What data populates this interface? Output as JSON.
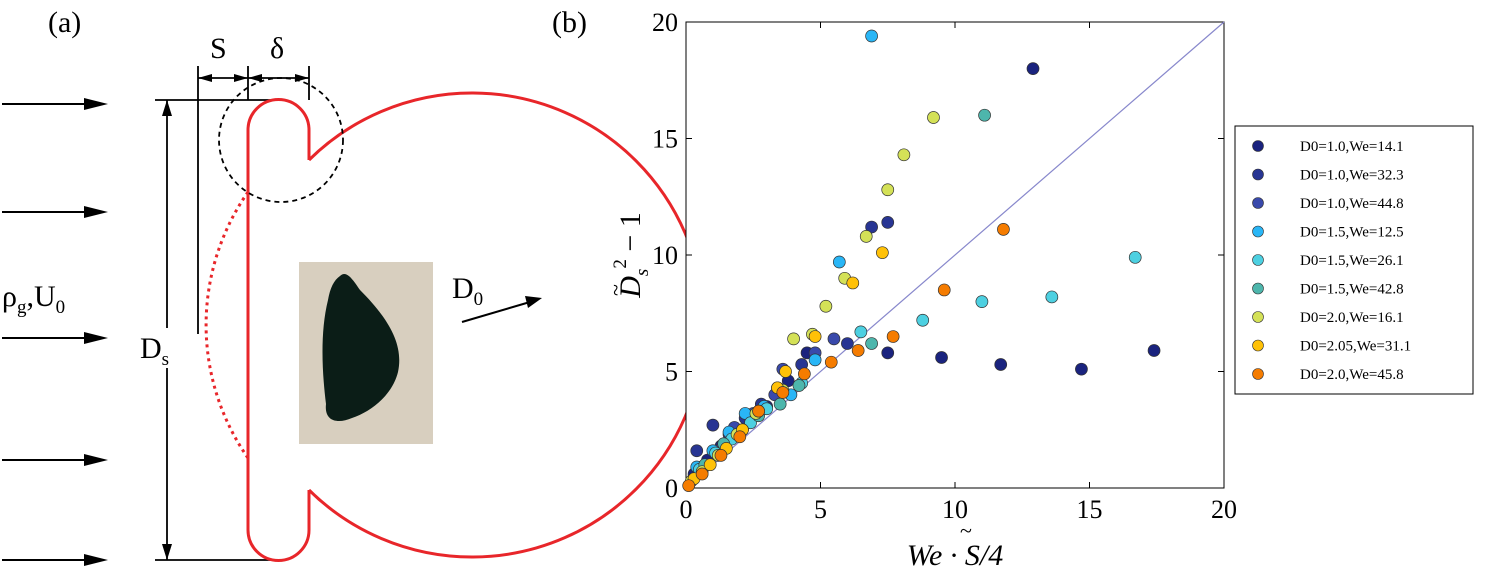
{
  "panel_a": {
    "label": "(a)",
    "s_label": "S",
    "delta_label": "δ",
    "gas_label": "ρ",
    "gas_sub": "g",
    "gas_mid": ",U",
    "gas_sub2": "0",
    "ds_label": "D",
    "ds_sub": "s",
    "d0_label": "D",
    "d0_sub": "0",
    "colors": {
      "drop": "#e8262a",
      "line": "#000000",
      "photo_bg": "#d8cfbf",
      "photo_drop": "#0b1d17"
    }
  },
  "panel_b": {
    "label": "(b)"
  },
  "chart_data": {
    "type": "scatter",
    "xlabel": "We · S̃/4",
    "ylabel": "D̃s² − 1",
    "xlim": [
      0,
      20
    ],
    "ylim": [
      0,
      20
    ],
    "xticks": [
      "0",
      "5",
      "10",
      "15",
      "20"
    ],
    "yticks": [
      "0",
      "5",
      "10",
      "15",
      "20"
    ],
    "reference_line": {
      "from": [
        0,
        0
      ],
      "to": [
        20,
        20
      ],
      "color": "#8888cc"
    },
    "legend_position": "right",
    "series": [
      {
        "name": "D0=1.0,We=14.1",
        "color": "#1a237e",
        "points": [
          [
            0.3,
            0.6
          ],
          [
            0.8,
            1.2
          ],
          [
            1.3,
            1.8
          ],
          [
            1.8,
            2.4
          ],
          [
            2.3,
            3.0
          ],
          [
            3.0,
            3.5
          ],
          [
            3.8,
            4.6
          ],
          [
            4.5,
            5.8
          ],
          [
            7.5,
            5.8
          ],
          [
            9.5,
            5.6
          ],
          [
            11.7,
            5.3
          ],
          [
            14.7,
            5.1
          ],
          [
            17.4,
            5.9
          ],
          [
            12.9,
            18.0
          ]
        ]
      },
      {
        "name": "D0=1.0,We=32.3",
        "color": "#283593",
        "points": [
          [
            0.4,
            1.6
          ],
          [
            1.0,
            2.7
          ],
          [
            1.6,
            2.3
          ],
          [
            2.2,
            3.0
          ],
          [
            2.8,
            3.6
          ],
          [
            3.4,
            4.3
          ],
          [
            4.3,
            5.3
          ],
          [
            6.0,
            6.2
          ],
          [
            7.5,
            11.4
          ],
          [
            6.9,
            11.2
          ]
        ]
      },
      {
        "name": "D0=1.0,We=44.8",
        "color": "#3949ab",
        "points": [
          [
            0.6,
            0.9
          ],
          [
            1.2,
            1.6
          ],
          [
            1.8,
            2.6
          ],
          [
            2.5,
            3.2
          ],
          [
            3.3,
            4.0
          ],
          [
            3.6,
            5.1
          ],
          [
            4.8,
            5.8
          ],
          [
            5.5,
            6.4
          ]
        ]
      },
      {
        "name": "D0=1.5,We=12.5",
        "color": "#29b6f6",
        "points": [
          [
            0.4,
            0.9
          ],
          [
            1.0,
            1.6
          ],
          [
            1.6,
            2.4
          ],
          [
            2.2,
            3.2
          ],
          [
            2.9,
            3.5
          ],
          [
            3.9,
            4.0
          ],
          [
            4.8,
            5.5
          ],
          [
            5.7,
            9.7
          ],
          [
            6.9,
            19.4
          ]
        ]
      },
      {
        "name": "D0=1.5,We=26.1",
        "color": "#4dd0e1",
        "points": [
          [
            0.5,
            0.8
          ],
          [
            1.1,
            1.5
          ],
          [
            1.7,
            2.1
          ],
          [
            2.4,
            2.8
          ],
          [
            3.0,
            3.4
          ],
          [
            4.3,
            4.5
          ],
          [
            6.5,
            6.7
          ],
          [
            8.8,
            7.2
          ],
          [
            11.0,
            8.0
          ],
          [
            13.6,
            8.2
          ],
          [
            16.7,
            9.9
          ]
        ]
      },
      {
        "name": "D0=1.5,We=42.8",
        "color": "#4db6ac",
        "points": [
          [
            0.7,
            1.0
          ],
          [
            1.4,
            1.9
          ],
          [
            2.1,
            2.5
          ],
          [
            2.7,
            3.1
          ],
          [
            3.5,
            3.6
          ],
          [
            4.2,
            4.4
          ],
          [
            6.9,
            6.2
          ],
          [
            11.1,
            16.0
          ]
        ]
      },
      {
        "name": "D0=2.0,We=16.1",
        "color": "#d4e157",
        "points": [
          [
            0.2,
            0.3
          ],
          [
            0.6,
            0.7
          ],
          [
            1.2,
            1.4
          ],
          [
            1.9,
            2.3
          ],
          [
            2.6,
            3.2
          ],
          [
            3.6,
            4.2
          ],
          [
            4.0,
            6.4
          ],
          [
            4.7,
            6.6
          ],
          [
            5.2,
            7.8
          ],
          [
            5.9,
            9.0
          ],
          [
            6.7,
            10.8
          ],
          [
            7.5,
            12.8
          ],
          [
            8.1,
            14.3
          ],
          [
            9.2,
            15.9
          ]
        ]
      },
      {
        "name": "D0=2.05,We=31.1",
        "color": "#ffc107",
        "points": [
          [
            0.3,
            0.4
          ],
          [
            0.9,
            1.0
          ],
          [
            1.5,
            1.7
          ],
          [
            2.1,
            2.5
          ],
          [
            2.7,
            3.3
          ],
          [
            3.4,
            4.3
          ],
          [
            3.7,
            5.0
          ],
          [
            4.8,
            6.5
          ],
          [
            6.2,
            8.8
          ],
          [
            7.3,
            10.1
          ]
        ]
      },
      {
        "name": "D0=2.0,We=45.8",
        "color": "#f57c00",
        "points": [
          [
            0.1,
            0.1
          ],
          [
            0.6,
            0.6
          ],
          [
            1.3,
            1.4
          ],
          [
            2.0,
            2.2
          ],
          [
            2.7,
            3.3
          ],
          [
            3.6,
            4.1
          ],
          [
            4.4,
            4.9
          ],
          [
            5.4,
            5.4
          ],
          [
            6.4,
            5.9
          ],
          [
            7.7,
            6.5
          ],
          [
            9.6,
            8.5
          ],
          [
            11.8,
            11.1
          ]
        ]
      }
    ]
  }
}
